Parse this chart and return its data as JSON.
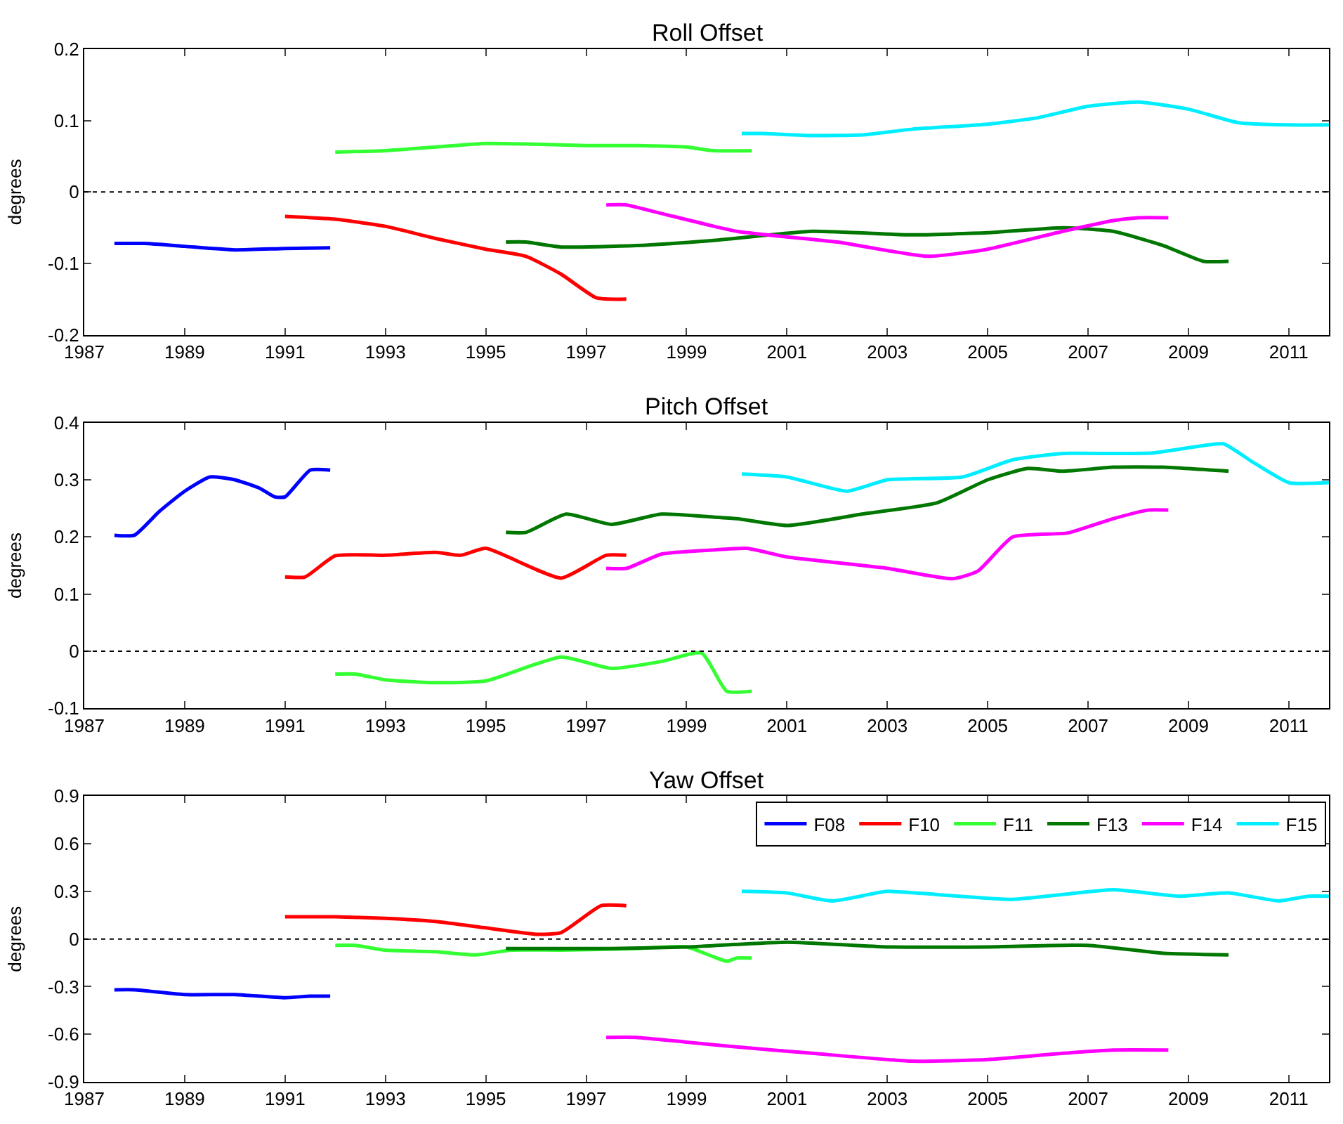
{
  "chart_data": [
    {
      "type": "line",
      "title": "Roll Offset",
      "ylabel": "degrees",
      "xlim": [
        1987,
        2011.8
      ],
      "xticks": [
        1987,
        1989,
        1991,
        1993,
        1995,
        1997,
        1999,
        2001,
        2003,
        2005,
        2007,
        2009,
        2011
      ],
      "ylim": [
        -0.2,
        0.2
      ],
      "yticks": [
        -0.2,
        -0.1,
        0,
        0.1,
        0.2
      ],
      "grid": false,
      "legend": false,
      "ref_lines": [
        {
          "axis": "y",
          "value": 0,
          "line_style": "dotted",
          "color": "#000000"
        }
      ],
      "series": [
        {
          "color": "#0000ff",
          "x": [
            1987.6,
            1988.2,
            1989,
            1990,
            1991,
            1991.9
          ],
          "values": [
            -0.072,
            -0.072,
            -0.076,
            -0.081,
            -0.079,
            -0.078
          ]
        },
        {
          "color": "#ff0000",
          "x": [
            1991,
            1992,
            1993,
            1994,
            1995,
            1995.8,
            1996.5,
            1997.2,
            1997.8
          ],
          "values": [
            -0.034,
            -0.038,
            -0.048,
            -0.065,
            -0.08,
            -0.09,
            -0.115,
            -0.148,
            -0.15
          ]
        },
        {
          "color": "#33ff33",
          "x": [
            1992,
            1993,
            1994,
            1995,
            1996,
            1997,
            1998,
            1999,
            1999.5,
            2000.3
          ],
          "values": [
            0.056,
            0.058,
            0.063,
            0.068,
            0.067,
            0.065,
            0.065,
            0.063,
            0.058,
            0.058
          ]
        },
        {
          "color": "#007700",
          "x": [
            1995.4,
            1995.8,
            1996.5,
            1998,
            1999.5,
            2001.5,
            2003.5,
            2005,
            2006.5,
            2007.5,
            2008.5,
            2009.3,
            2009.8
          ],
          "values": [
            -0.07,
            -0.07,
            -0.077,
            -0.075,
            -0.068,
            -0.055,
            -0.06,
            -0.057,
            -0.05,
            -0.055,
            -0.075,
            -0.097,
            -0.097
          ]
        },
        {
          "color": "#ff00ff",
          "x": [
            1997.4,
            1997.8,
            1998.5,
            2000,
            2002,
            2003.8,
            2005,
            2006.5,
            2007.5,
            2008,
            2008.6
          ],
          "values": [
            -0.018,
            -0.018,
            -0.03,
            -0.055,
            -0.07,
            -0.09,
            -0.08,
            -0.055,
            -0.04,
            -0.036,
            -0.036
          ]
        },
        {
          "color": "#00eeff",
          "x": [
            2000.1,
            2000.5,
            2001.5,
            2002.5,
            2003.5,
            2005,
            2006,
            2007,
            2008,
            2009,
            2010,
            2011,
            2011.8
          ],
          "values": [
            0.082,
            0.082,
            0.079,
            0.08,
            0.088,
            0.095,
            0.104,
            0.12,
            0.126,
            0.116,
            0.097,
            0.094,
            0.094
          ]
        }
      ]
    },
    {
      "type": "line",
      "title": "Pitch Offset",
      "ylabel": "degrees",
      "xlim": [
        1987,
        2011.8
      ],
      "xticks": [
        1987,
        1989,
        1991,
        1993,
        1995,
        1997,
        1999,
        2001,
        2003,
        2005,
        2007,
        2009,
        2011
      ],
      "ylim": [
        -0.1,
        0.4
      ],
      "yticks": [
        -0.1,
        0,
        0.1,
        0.2,
        0.3,
        0.4
      ],
      "grid": false,
      "legend": false,
      "ref_lines": [
        {
          "axis": "y",
          "value": 0,
          "line_style": "dotted",
          "color": "#000000"
        }
      ],
      "series": [
        {
          "color": "#0000ff",
          "x": [
            1987.6,
            1988,
            1988.5,
            1989,
            1989.5,
            1990,
            1990.5,
            1990.8,
            1991,
            1991.5,
            1991.9
          ],
          "values": [
            0.203,
            0.203,
            0.245,
            0.28,
            0.305,
            0.3,
            0.285,
            0.27,
            0.27,
            0.317,
            0.317
          ]
        },
        {
          "color": "#ff0000",
          "x": [
            1991,
            1991.4,
            1992,
            1993,
            1994,
            1994.5,
            1995,
            1996.5,
            1997.4,
            1997.8
          ],
          "values": [
            0.13,
            0.13,
            0.167,
            0.168,
            0.173,
            0.168,
            0.18,
            0.128,
            0.168,
            0.168
          ]
        },
        {
          "color": "#33ff33",
          "x": [
            1992,
            1992.4,
            1993,
            1994,
            1995,
            1996.5,
            1997.5,
            1998.5,
            1999.3,
            1999.8,
            2000.3
          ],
          "values": [
            -0.04,
            -0.04,
            -0.05,
            -0.055,
            -0.052,
            -0.01,
            -0.03,
            -0.018,
            -0.003,
            -0.07,
            -0.07
          ]
        },
        {
          "color": "#007700",
          "x": [
            1995.4,
            1995.8,
            1996.6,
            1997.5,
            1998.5,
            1999.5,
            2000,
            2001,
            2002.5,
            2004,
            2005,
            2005.8,
            2006.5,
            2007.5,
            2008.5,
            2009.8
          ],
          "values": [
            0.208,
            0.208,
            0.24,
            0.222,
            0.24,
            0.235,
            0.232,
            0.22,
            0.24,
            0.26,
            0.3,
            0.32,
            0.315,
            0.322,
            0.322,
            0.315
          ]
        },
        {
          "color": "#ff00ff",
          "x": [
            1997.4,
            1997.8,
            1998.5,
            1999.5,
            2000.2,
            2001,
            2003,
            2004.3,
            2004.8,
            2005.5,
            2006.6,
            2007.5,
            2008.2,
            2008.6
          ],
          "values": [
            0.145,
            0.145,
            0.17,
            0.177,
            0.18,
            0.165,
            0.145,
            0.127,
            0.14,
            0.2,
            0.207,
            0.232,
            0.247,
            0.247
          ]
        },
        {
          "color": "#00eeff",
          "x": [
            2000.1,
            2001,
            2002.2,
            2003,
            2004.5,
            2005.5,
            2006.5,
            2007.5,
            2008.3,
            2009.3,
            2009.7,
            2010.3,
            2011,
            2011.8
          ],
          "values": [
            0.31,
            0.305,
            0.28,
            0.3,
            0.305,
            0.335,
            0.346,
            0.346,
            0.347,
            0.36,
            0.363,
            0.33,
            0.295,
            0.295
          ]
        }
      ]
    },
    {
      "type": "line",
      "title": "Yaw Offset",
      "ylabel": "degrees",
      "xlim": [
        1987,
        2011.8
      ],
      "xticks": [
        1987,
        1989,
        1991,
        1993,
        1995,
        1997,
        1999,
        2001,
        2003,
        2005,
        2007,
        2009,
        2011
      ],
      "ylim": [
        -0.9,
        0.9
      ],
      "yticks": [
        -0.9,
        -0.6,
        -0.3,
        0,
        0.3,
        0.6,
        0.9
      ],
      "grid": false,
      "legend": "top right",
      "ref_lines": [
        {
          "axis": "y",
          "value": 0,
          "line_style": "dotted",
          "color": "#000000"
        }
      ],
      "series": [
        {
          "name": "F08",
          "color": "#0000ff",
          "x": [
            1987.6,
            1988,
            1989,
            1990,
            1991,
            1991.5,
            1991.9
          ],
          "values": [
            -0.32,
            -0.32,
            -0.35,
            -0.35,
            -0.37,
            -0.36,
            -0.36
          ]
        },
        {
          "name": "F10",
          "color": "#ff0000",
          "x": [
            1991,
            1992,
            1993,
            1994,
            1995,
            1996,
            1996.5,
            1997.3,
            1997.8
          ],
          "values": [
            0.14,
            0.14,
            0.13,
            0.11,
            0.07,
            0.03,
            0.04,
            0.21,
            0.21
          ]
        },
        {
          "name": "F11",
          "color": "#33ff33",
          "x": [
            1992,
            1992.4,
            1993,
            1994,
            1994.8,
            1995.5,
            1996.5,
            1998,
            1999,
            1999.8,
            2000,
            2000.3
          ],
          "values": [
            -0.04,
            -0.04,
            -0.07,
            -0.08,
            -0.1,
            -0.07,
            -0.07,
            -0.06,
            -0.05,
            -0.14,
            -0.12,
            -0.12
          ]
        },
        {
          "name": "F13",
          "color": "#007700",
          "x": [
            1995.4,
            1997.5,
            1999,
            2001,
            2003,
            2005,
            2007,
            2008.5,
            2009.8
          ],
          "values": [
            -0.06,
            -0.06,
            -0.05,
            -0.02,
            -0.05,
            -0.05,
            -0.04,
            -0.09,
            -0.1
          ]
        },
        {
          "name": "F14",
          "color": "#ff00ff",
          "x": [
            1997.4,
            1998,
            1999,
            2000,
            2001.5,
            2003.5,
            2005,
            2006.5,
            2007.5,
            2008.6
          ],
          "values": [
            -0.62,
            -0.62,
            -0.65,
            -0.68,
            -0.72,
            -0.77,
            -0.76,
            -0.72,
            -0.7,
            -0.7
          ]
        },
        {
          "name": "F15",
          "color": "#00eeff",
          "x": [
            2000.1,
            2001,
            2001.9,
            2003,
            2004,
            2005.5,
            2007.5,
            2008.8,
            2009.8,
            2010.8,
            2011.4,
            2011.8
          ],
          "values": [
            0.3,
            0.29,
            0.24,
            0.3,
            0.28,
            0.25,
            0.31,
            0.27,
            0.29,
            0.24,
            0.27,
            0.27
          ]
        }
      ]
    }
  ]
}
